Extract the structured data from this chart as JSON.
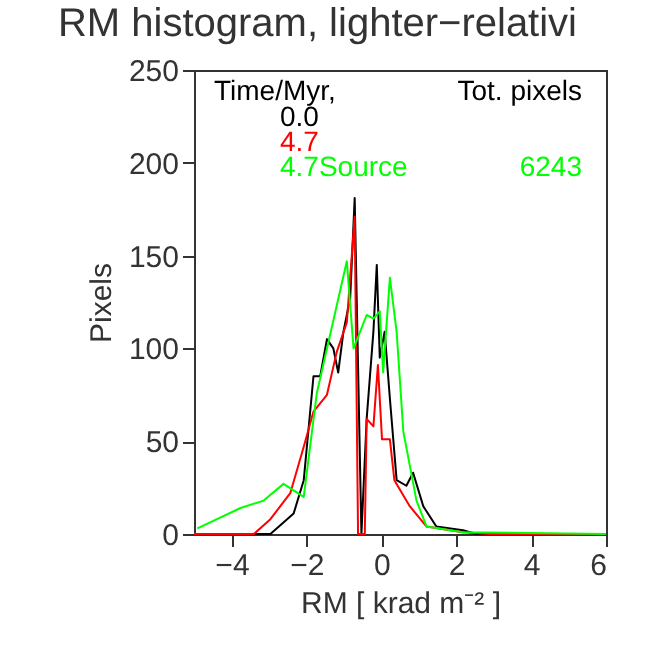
{
  "chart_data": {
    "type": "line",
    "title": "RM histogram, lighter−relativi",
    "xlabel": "RM [ krad m⁻² ]",
    "ylabel": "Pixels",
    "legend_title": "Time/Myr,",
    "annotations": [
      "Tot. pixels",
      "6243"
    ],
    "legend": "top",
    "grid": false,
    "xlim": [
      -5,
      6
    ],
    "xticks": [
      -4,
      -2,
      0,
      2,
      4,
      6
    ],
    "ylim": [
      0,
      250
    ],
    "yticks": [
      0,
      50,
      100,
      150,
      200,
      250
    ],
    "series": [
      {
        "name": "0.0",
        "color": "#000000",
        "x": [
          -5,
          -2.96,
          -2.34,
          -2.07,
          -1.81,
          -1.63,
          -1.45,
          -1.28,
          -1.15,
          -1.01,
          -0.83,
          -0.71,
          -0.53,
          -0.39,
          -0.21,
          -0.12,
          -0.04,
          0.09,
          0.23,
          0.41,
          0.67,
          0.85,
          1.12,
          1.47,
          2.18,
          2.54,
          6
        ],
        "values": [
          0,
          0,
          11,
          29,
          85,
          85,
          105,
          100,
          87,
          109,
          127,
          181,
          0,
          62,
          109,
          145,
          95,
          109,
          73,
          29,
          26,
          33,
          15,
          4,
          2,
          0,
          0
        ]
      },
      {
        "name": "4.7",
        "color": "#ff0000",
        "x": [
          -5,
          -3.4,
          -2.96,
          -2.43,
          -2.07,
          -1.81,
          -1.45,
          -1.19,
          -0.92,
          -0.71,
          -0.62,
          -0.44,
          -0.39,
          -0.21,
          -0.09,
          0.02,
          0.23,
          0.35,
          0.76,
          1.21,
          2.18,
          2.89,
          6
        ],
        "values": [
          0,
          0,
          8,
          22,
          47,
          66,
          75,
          98,
          114,
          171,
          0,
          0,
          62,
          58,
          91,
          51,
          51,
          29,
          15,
          4,
          1,
          0,
          0
        ]
      },
      {
        "name": "4.7Source",
        "color": "#00ff00",
        "x": [
          -4.91,
          -3.76,
          -3.14,
          -2.61,
          -2.07,
          -1.72,
          -1.19,
          -0.92,
          -0.74,
          -0.39,
          -0.21,
          -0.04,
          0.05,
          0.23,
          0.41,
          0.59,
          0.94,
          1.21,
          2.18,
          6
        ],
        "values": [
          3,
          14,
          18,
          27,
          20,
          76,
          123,
          147,
          100,
          118,
          116,
          120,
          87,
          138,
          109,
          55,
          18,
          4,
          1,
          0
        ]
      }
    ]
  }
}
